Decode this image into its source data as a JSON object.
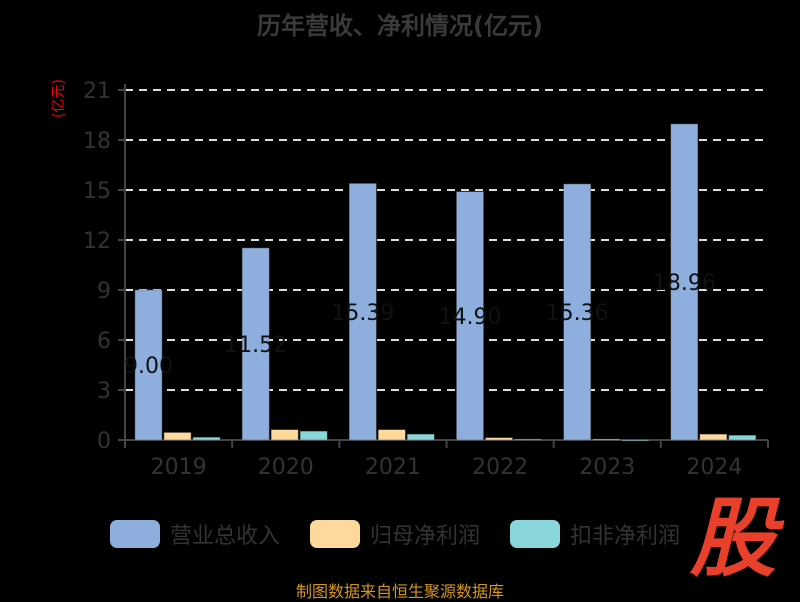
{
  "chart_data": {
    "type": "bar",
    "title": "历年营收、净利情况(亿元)",
    "ylabel": "(亿元)",
    "xlabel": "",
    "categories": [
      "2019",
      "2020",
      "2021",
      "2022",
      "2023",
      "2024"
    ],
    "ylim": [
      0,
      21
    ],
    "yticks": [
      0,
      3,
      6,
      9,
      12,
      15,
      18,
      21
    ],
    "grid": true,
    "legend_position": "bottom",
    "series": [
      {
        "name": "营业总收入",
        "color": "#8eaedd",
        "values": [
          9.0,
          11.52,
          15.39,
          14.9,
          15.36,
          18.96
        ],
        "labels": [
          "9.00",
          "11.52",
          "15.39",
          "14.90",
          "15.36",
          "18.96"
        ]
      },
      {
        "name": "归母净利润",
        "color": "#ffd99b",
        "values": [
          0.45,
          0.62,
          0.62,
          0.14,
          0.05,
          0.35
        ]
      },
      {
        "name": "扣非净利润",
        "color": "#88d6da",
        "values": [
          0.16,
          0.53,
          0.35,
          0.05,
          0.01,
          0.28
        ]
      }
    ]
  },
  "footer": "制图数据来自恒生聚源数据库",
  "logo_text": "股"
}
